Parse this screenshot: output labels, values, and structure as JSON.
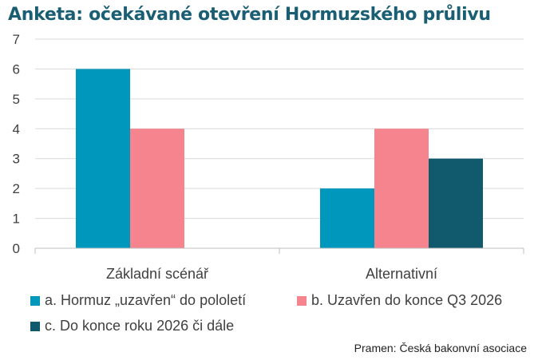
{
  "chart_data": {
    "type": "bar",
    "title": "Anketa: očekávané otevření Hormuzského průlivu",
    "categories": [
      "Základní scénář",
      "Alternativní"
    ],
    "series": [
      {
        "name": "a. Hormuz „uzavřen“ do pololetí",
        "values": [
          6,
          2
        ],
        "color": "#0097bd"
      },
      {
        "name": "b. Uzavřen do konce Q3 2026",
        "values": [
          4,
          4
        ],
        "color": "#f5848f"
      },
      {
        "name": "c. Do konce roku 2026 či dále",
        "values": [
          0,
          3
        ],
        "color": "#115a6e"
      }
    ],
    "ylim": [
      0,
      7
    ],
    "yticks": [
      0,
      1,
      2,
      3,
      4,
      5,
      6,
      7
    ],
    "grid": true,
    "legend_position": "bottom"
  },
  "source_text": "Pramen:  Česká bakonvní asociace"
}
